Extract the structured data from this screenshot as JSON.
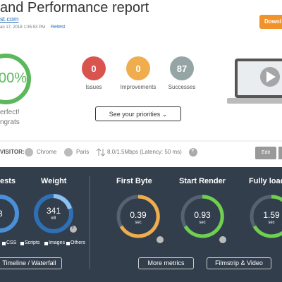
{
  "header": {
    "title": "and Performance report",
    "url": "st.com",
    "date": "an 17, 2018 1:35:53 PM",
    "retest": "Retest",
    "download": "Downl"
  },
  "score": {
    "value": "00%",
    "line1": "erfect!",
    "line2": "ngrats"
  },
  "counters": [
    {
      "value": "0",
      "label": "Issues"
    },
    {
      "value": "0",
      "label": "Improvements"
    },
    {
      "value": "87",
      "label": "Successes"
    }
  ],
  "priorities": "See your priorities",
  "visitor": {
    "label": "VISITOR:",
    "browser": "Chrome",
    "location": "Paris",
    "network": "8.0/1.5Mbps (Latency: 50 ms)",
    "help": "?",
    "edit": "Edit"
  },
  "metrics": {
    "headings": [
      "ests",
      "Weight",
      "First Byte",
      "Start Render",
      "Fully load"
    ],
    "requests": "3",
    "weight": {
      "value": "341",
      "unit": "kB"
    },
    "first_byte": {
      "value": "0.39",
      "unit": "sec"
    },
    "start_render": {
      "value": "0.93",
      "unit": "sec"
    },
    "fully_loaded": {
      "value": "1.59",
      "unit": "sec"
    },
    "legend": [
      "CSS",
      "Scripts",
      "Images",
      "Others"
    ],
    "buttons": [
      "Timeline / Waterfall",
      "More metrics",
      "Filmstrip & Video"
    ],
    "help": "?"
  }
}
